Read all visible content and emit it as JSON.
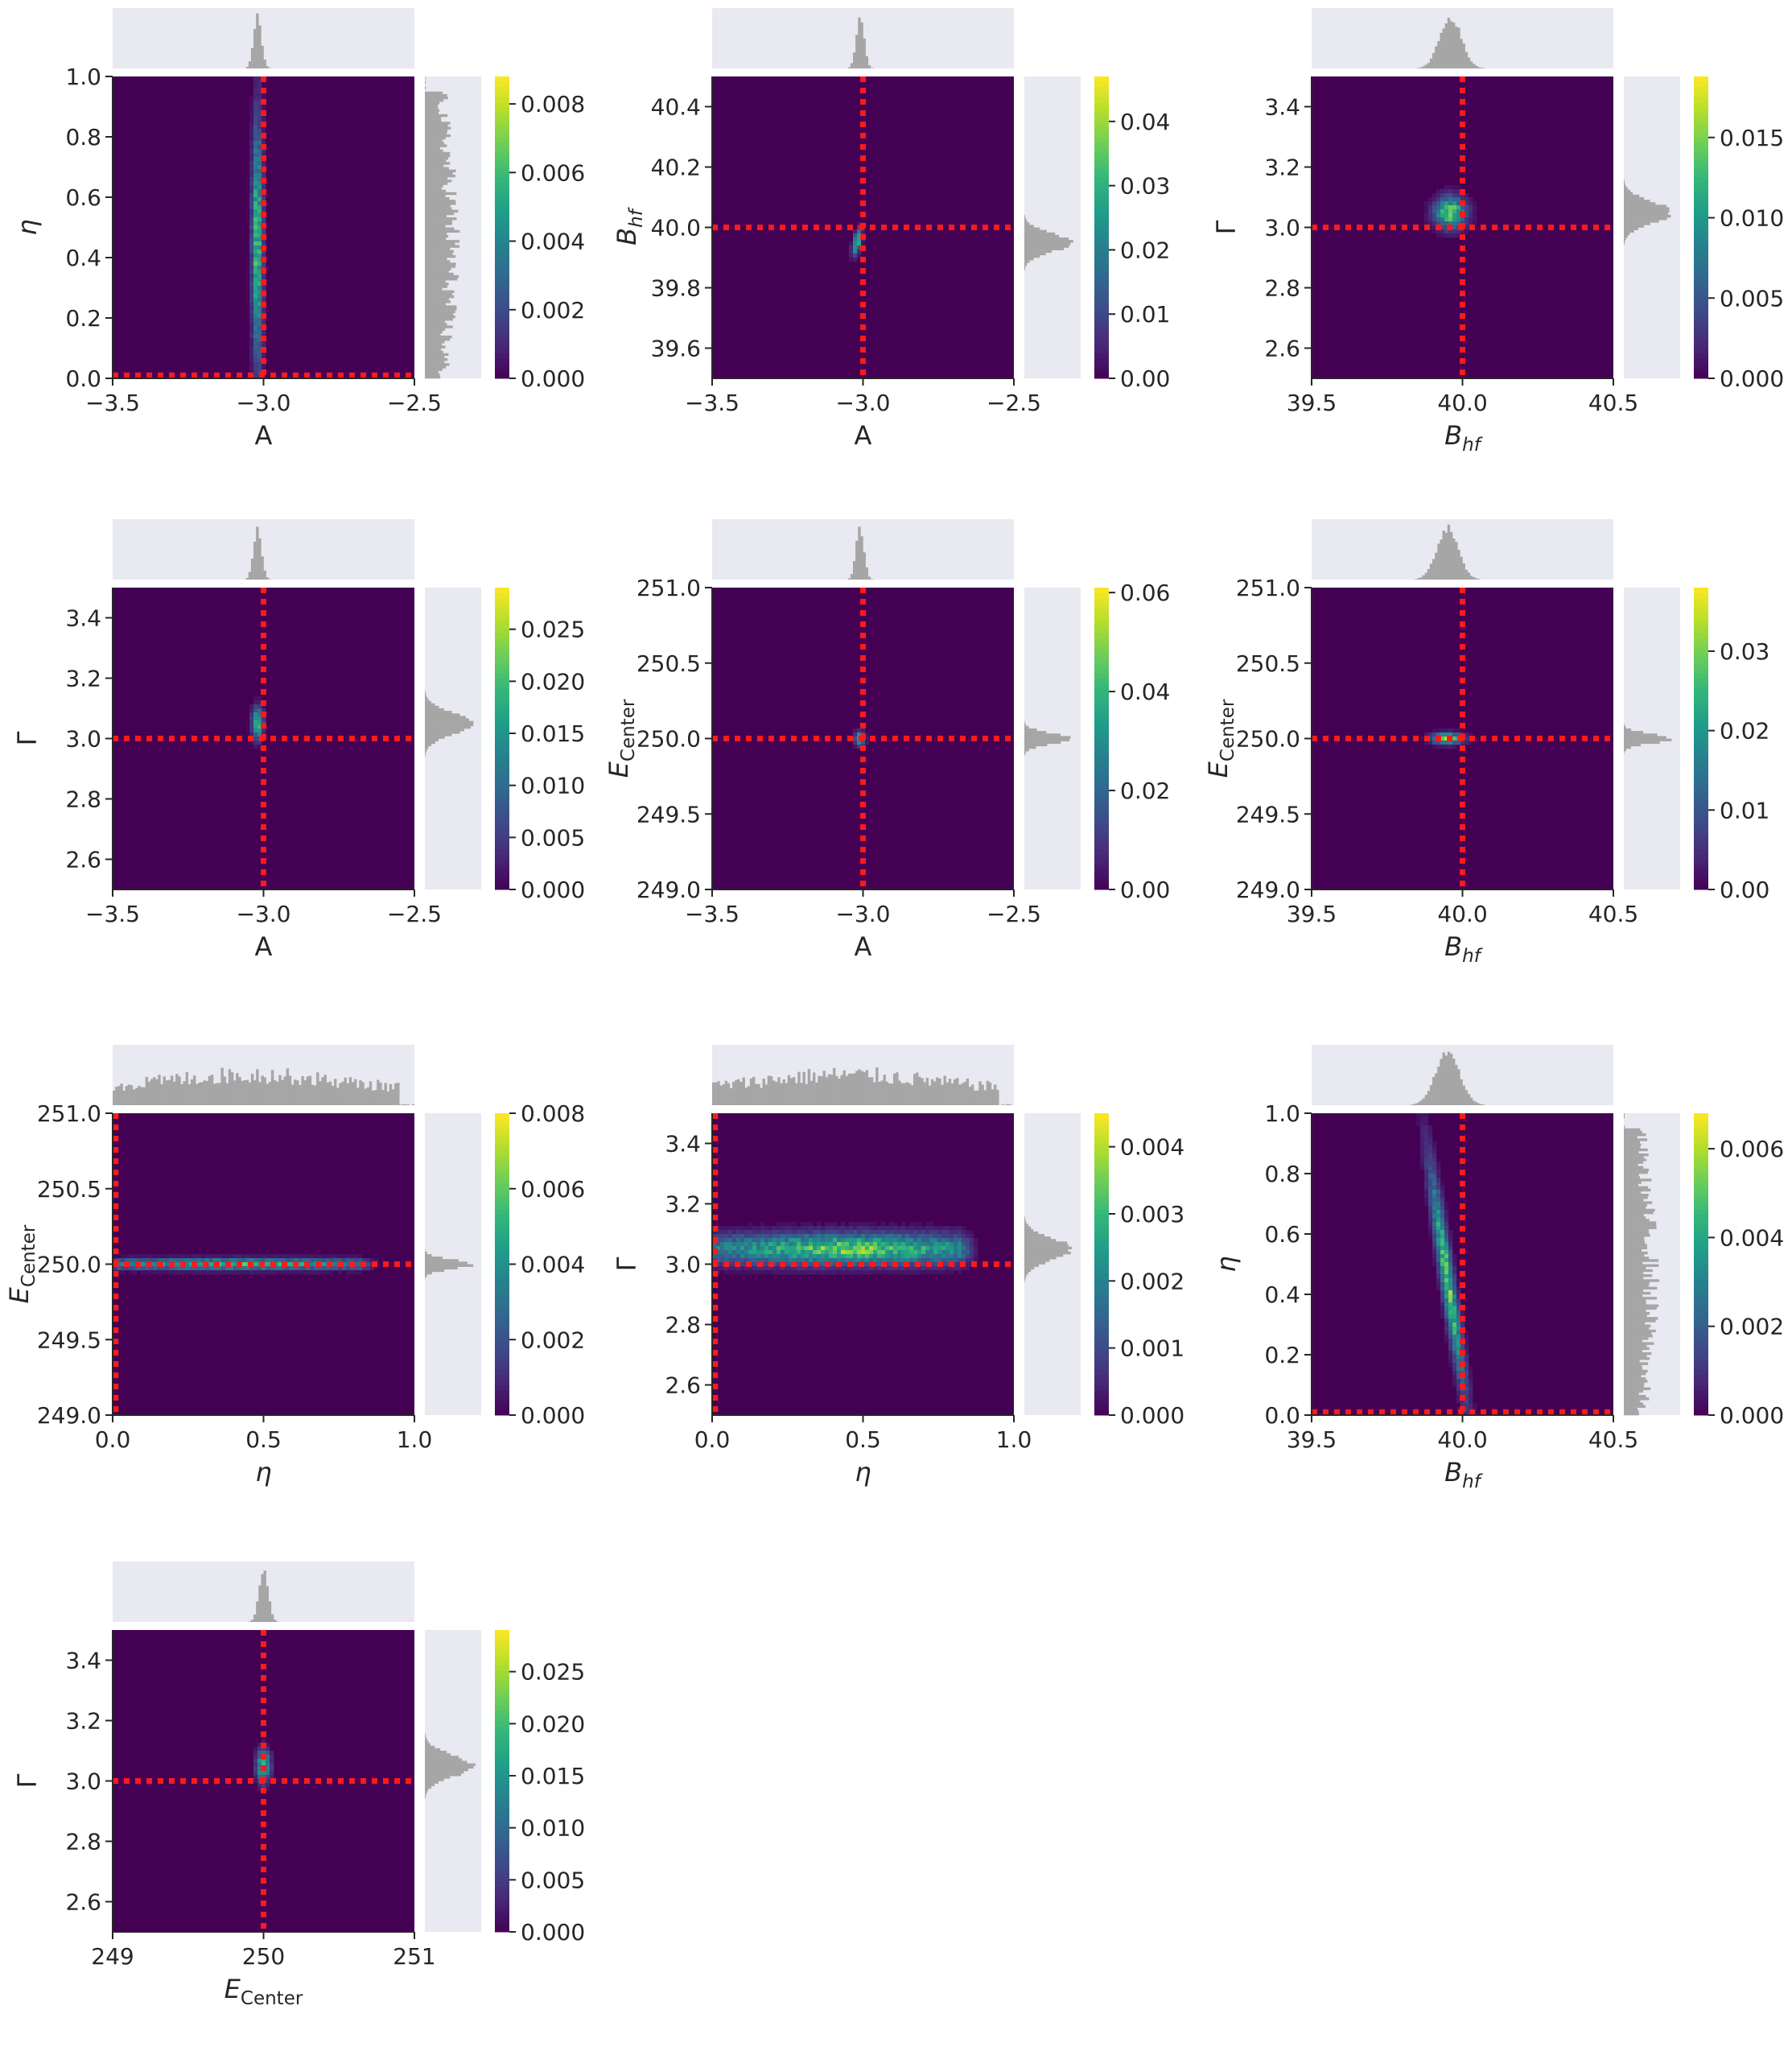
{
  "colors": {
    "heat_background": "#440154",
    "truth_line": "#ff1a1a",
    "hist_fill": "#a6a6a6",
    "hist_background": "#e9e9f1",
    "axis": "#262626",
    "colormap": [
      "#440154",
      "#482878",
      "#3e4a89",
      "#31688e",
      "#26828e",
      "#1f9e89",
      "#35b779",
      "#6ece58",
      "#b5de2b",
      "#fde725"
    ]
  },
  "chart_data": [
    {
      "type": "heatmap",
      "xlabel": "A",
      "ylabel": "η",
      "xlim": [
        -3.5,
        -2.5
      ],
      "ylim": [
        0.0,
        1.0
      ],
      "xticks": [
        "−3.5",
        "−3.0",
        "−2.5"
      ],
      "xtick_values": [
        -3.5,
        -3.0,
        -2.5
      ],
      "yticks": [
        "0.0",
        "0.2",
        "0.4",
        "0.6",
        "0.8",
        "1.0"
      ],
      "ytick_values": [
        0.0,
        0.2,
        0.4,
        0.6,
        0.8,
        1.0
      ],
      "colorbar_ticks": [
        "0.000",
        "0.002",
        "0.004",
        "0.006",
        "0.008"
      ],
      "colorbar_tick_values": [
        0.0,
        0.002,
        0.004,
        0.006,
        0.008
      ],
      "colorbar_max": 0.0088,
      "truth": {
        "x": -3.0,
        "y": 0.01
      },
      "density": {
        "cx": -3.02,
        "cy": 0.45,
        "sx": 0.012,
        "sy": 0.27,
        "rho": 0.0,
        "peak": 0.008
      },
      "x_marginal": {
        "mean": -3.02,
        "sd": 0.013,
        "kind": "peak"
      },
      "y_marginal": {
        "mean": 0.45,
        "sd": 0.27,
        "kind": "spread",
        "range": [
          0.0,
          0.95
        ]
      }
    },
    {
      "type": "heatmap",
      "xlabel": "A",
      "ylabel": "B_hf",
      "xlim": [
        -3.5,
        -2.5
      ],
      "ylim": [
        39.5,
        40.5
      ],
      "xticks": [
        "−3.5",
        "−3.0",
        "−2.5"
      ],
      "xtick_values": [
        -3.5,
        -3.0,
        -2.5
      ],
      "yticks": [
        "39.6",
        "39.8",
        "40.0",
        "40.2",
        "40.4"
      ],
      "ytick_values": [
        39.6,
        39.8,
        40.0,
        40.2,
        40.4
      ],
      "colorbar_ticks": [
        "0.00",
        "0.01",
        "0.02",
        "0.03",
        "0.04"
      ],
      "colorbar_tick_values": [
        0.0,
        0.01,
        0.02,
        0.03,
        0.04
      ],
      "colorbar_max": 0.047,
      "truth": {
        "x": -3.0,
        "y": 40.0
      },
      "density": {
        "cx": -3.02,
        "cy": 39.95,
        "sx": 0.01,
        "sy": 0.028,
        "rho": 0.5,
        "peak": 0.042
      },
      "x_marginal": {
        "mean": -3.01,
        "sd": 0.013,
        "kind": "peak"
      },
      "y_marginal": {
        "mean": 39.95,
        "sd": 0.03,
        "kind": "peak"
      }
    },
    {
      "type": "heatmap",
      "xlabel": "B_hf",
      "ylabel": "Γ",
      "xlim": [
        39.5,
        40.5
      ],
      "ylim": [
        2.5,
        3.5
      ],
      "xticks": [
        "39.5",
        "40.0",
        "40.5"
      ],
      "xtick_values": [
        39.5,
        40.0,
        40.5
      ],
      "yticks": [
        "2.6",
        "2.8",
        "3.0",
        "3.2",
        "3.4"
      ],
      "ytick_values": [
        2.6,
        2.8,
        3.0,
        3.2,
        3.4
      ],
      "colorbar_ticks": [
        "0.000",
        "0.005",
        "0.010",
        "0.015"
      ],
      "colorbar_tick_values": [
        0.0,
        0.005,
        0.01,
        0.015
      ],
      "colorbar_max": 0.0188,
      "truth": {
        "x": 40.0,
        "y": 3.0
      },
      "density": {
        "cx": 39.96,
        "cy": 3.05,
        "sx": 0.035,
        "sy": 0.035,
        "rho": 0.0,
        "peak": 0.018
      },
      "x_marginal": {
        "mean": 39.96,
        "sd": 0.035,
        "kind": "peak"
      },
      "y_marginal": {
        "mean": 3.05,
        "sd": 0.035,
        "kind": "peak"
      }
    },
    {
      "type": "heatmap",
      "xlabel": "A",
      "ylabel": "Γ",
      "xlim": [
        -3.5,
        -2.5
      ],
      "ylim": [
        2.5,
        3.5
      ],
      "xticks": [
        "−3.5",
        "−3.0",
        "−2.5"
      ],
      "xtick_values": [
        -3.5,
        -3.0,
        -2.5
      ],
      "yticks": [
        "2.6",
        "2.8",
        "3.0",
        "3.2",
        "3.4"
      ],
      "ytick_values": [
        2.6,
        2.8,
        3.0,
        3.2,
        3.4
      ],
      "colorbar_ticks": [
        "0.000",
        "0.005",
        "0.010",
        "0.015",
        "0.020",
        "0.025"
      ],
      "colorbar_tick_values": [
        0.0,
        0.005,
        0.01,
        0.015,
        0.02,
        0.025
      ],
      "colorbar_max": 0.029,
      "truth": {
        "x": -3.0,
        "y": 3.0
      },
      "density": {
        "cx": -3.02,
        "cy": 3.05,
        "sx": 0.012,
        "sy": 0.035,
        "rho": 0.0,
        "peak": 0.027
      },
      "x_marginal": {
        "mean": -3.02,
        "sd": 0.013,
        "kind": "peak"
      },
      "y_marginal": {
        "mean": 3.05,
        "sd": 0.035,
        "kind": "peak"
      }
    },
    {
      "type": "heatmap",
      "xlabel": "A",
      "ylabel": "E_Center",
      "xlim": [
        -3.5,
        -2.5
      ],
      "ylim": [
        249.0,
        251.0
      ],
      "xticks": [
        "−3.5",
        "−3.0",
        "−2.5"
      ],
      "xtick_values": [
        -3.5,
        -3.0,
        -2.5
      ],
      "yticks": [
        "249.0",
        "249.5",
        "250.0",
        "250.5",
        "251.0"
      ],
      "ytick_values": [
        249.0,
        249.5,
        250.0,
        250.5,
        251.0
      ],
      "colorbar_ticks": [
        "0.00",
        "0.02",
        "0.04",
        "0.06"
      ],
      "colorbar_tick_values": [
        0.0,
        0.02,
        0.04,
        0.06
      ],
      "colorbar_max": 0.061,
      "truth": {
        "x": -3.0,
        "y": 250.0
      },
      "density": {
        "cx": -3.01,
        "cy": 250.0,
        "sx": 0.011,
        "sy": 0.03,
        "rho": 0.0,
        "peak": 0.058
      },
      "x_marginal": {
        "mean": -3.01,
        "sd": 0.013,
        "kind": "peak"
      },
      "y_marginal": {
        "mean": 250.0,
        "sd": 0.035,
        "kind": "peak"
      }
    },
    {
      "type": "heatmap",
      "xlabel": "B_hf",
      "ylabel": "E_Center",
      "xlim": [
        39.5,
        40.5
      ],
      "ylim": [
        249.0,
        251.0
      ],
      "xticks": [
        "39.5",
        "40.0",
        "40.5"
      ],
      "xtick_values": [
        39.5,
        40.0,
        40.5
      ],
      "yticks": [
        "249.0",
        "249.5",
        "250.0",
        "250.5",
        "251.0"
      ],
      "ytick_values": [
        249.0,
        249.5,
        250.0,
        250.5,
        251.0
      ],
      "colorbar_ticks": [
        "0.00",
        "0.01",
        "0.02",
        "0.03"
      ],
      "colorbar_tick_values": [
        0.0,
        0.01,
        0.02,
        0.03
      ],
      "colorbar_max": 0.038,
      "truth": {
        "x": 40.0,
        "y": 250.0
      },
      "density": {
        "cx": 39.95,
        "cy": 250.0,
        "sx": 0.035,
        "sy": 0.025,
        "rho": 0.0,
        "peak": 0.036
      },
      "x_marginal": {
        "mean": 39.95,
        "sd": 0.035,
        "kind": "peak"
      },
      "y_marginal": {
        "mean": 250.0,
        "sd": 0.03,
        "kind": "peak"
      }
    },
    {
      "type": "heatmap",
      "xlabel": "η",
      "ylabel": "E_Center",
      "xlim": [
        0.0,
        1.0
      ],
      "ylim": [
        249.0,
        251.0
      ],
      "xticks": [
        "0.0",
        "0.5",
        "1.0"
      ],
      "xtick_values": [
        0.0,
        0.5,
        1.0
      ],
      "yticks": [
        "249.0",
        "249.5",
        "250.0",
        "250.5",
        "251.0"
      ],
      "ytick_values": [
        249.0,
        249.5,
        250.0,
        250.5,
        251.0
      ],
      "colorbar_ticks": [
        "0.000",
        "0.002",
        "0.004",
        "0.006",
        "0.008"
      ],
      "colorbar_tick_values": [
        0.0,
        0.002,
        0.004,
        0.006,
        0.008
      ],
      "colorbar_max": 0.008,
      "truth": {
        "x": 0.01,
        "y": 250.0
      },
      "density": {
        "cx": 0.42,
        "cy": 250.0,
        "sx": 0.22,
        "sy": 0.025,
        "rho": 0.0,
        "peak": 0.0065,
        "xrange": [
          0.02,
          0.82
        ]
      },
      "x_marginal": {
        "mean": 0.45,
        "sd": 0.25,
        "kind": "spread",
        "range": [
          0.0,
          0.95
        ]
      },
      "y_marginal": {
        "mean": 250.0,
        "sd": 0.03,
        "kind": "peak"
      }
    },
    {
      "type": "heatmap",
      "xlabel": "η",
      "ylabel": "Γ",
      "xlim": [
        0.0,
        1.0
      ],
      "ylim": [
        2.5,
        3.5
      ],
      "xticks": [
        "0.0",
        "0.5",
        "1.0"
      ],
      "xtick_values": [
        0.0,
        0.5,
        1.0
      ],
      "yticks": [
        "2.6",
        "2.8",
        "3.0",
        "3.2",
        "3.4"
      ],
      "ytick_values": [
        2.6,
        2.8,
        3.0,
        3.2,
        3.4
      ],
      "colorbar_ticks": [
        "0.000",
        "0.001",
        "0.002",
        "0.003",
        "0.004"
      ],
      "colorbar_tick_values": [
        0.0,
        0.001,
        0.002,
        0.003,
        0.004
      ],
      "colorbar_max": 0.0045,
      "truth": {
        "x": 0.01,
        "y": 3.0
      },
      "density": {
        "cx": 0.45,
        "cy": 3.05,
        "sx": 0.22,
        "sy": 0.035,
        "rho": 0.0,
        "peak": 0.0042,
        "xrange": [
          0.02,
          0.82
        ]
      },
      "x_marginal": {
        "mean": 0.45,
        "sd": 0.25,
        "kind": "spread",
        "range": [
          0.0,
          0.95
        ]
      },
      "y_marginal": {
        "mean": 3.05,
        "sd": 0.035,
        "kind": "peak"
      }
    },
    {
      "type": "heatmap",
      "xlabel": "B_hf",
      "ylabel": "η",
      "xlim": [
        39.5,
        40.5
      ],
      "ylim": [
        0.0,
        1.0
      ],
      "xticks": [
        "39.5",
        "40.0",
        "40.5"
      ],
      "xtick_values": [
        39.5,
        40.0,
        40.5
      ],
      "yticks": [
        "0.0",
        "0.2",
        "0.4",
        "0.6",
        "0.8",
        "1.0"
      ],
      "ytick_values": [
        0.0,
        0.2,
        0.4,
        0.6,
        0.8,
        1.0
      ],
      "colorbar_ticks": [
        "0.000",
        "0.002",
        "0.004",
        "0.006"
      ],
      "colorbar_tick_values": [
        0.0,
        0.002,
        0.004,
        0.006
      ],
      "colorbar_max": 0.0068,
      "truth": {
        "x": 40.0,
        "y": 0.01
      },
      "density": {
        "cx": 39.95,
        "cy": 0.45,
        "sx": 0.015,
        "sy": 0.25,
        "rho": 0.0,
        "peak": 0.0062,
        "slope": -0.15
      },
      "x_marginal": {
        "mean": 39.95,
        "sd": 0.04,
        "kind": "peak"
      },
      "y_marginal": {
        "mean": 0.45,
        "sd": 0.27,
        "kind": "spread",
        "range": [
          0.0,
          0.95
        ]
      }
    },
    {
      "type": "heatmap",
      "xlabel": "E_Center",
      "ylabel": "Γ",
      "xlim": [
        249.0,
        251.0
      ],
      "ylim": [
        2.5,
        3.5
      ],
      "xticks": [
        "249",
        "250",
        "251"
      ],
      "xtick_values": [
        249,
        250,
        251
      ],
      "yticks": [
        "2.6",
        "2.8",
        "3.0",
        "3.2",
        "3.4"
      ],
      "ytick_values": [
        2.6,
        2.8,
        3.0,
        3.2,
        3.4
      ],
      "colorbar_ticks": [
        "0.000",
        "0.005",
        "0.010",
        "0.015",
        "0.020",
        "0.025"
      ],
      "colorbar_tick_values": [
        0.0,
        0.005,
        0.01,
        0.015,
        0.02,
        0.025
      ],
      "colorbar_max": 0.029,
      "truth": {
        "x": 250.0,
        "y": 3.0
      },
      "density": {
        "cx": 250.0,
        "cy": 3.05,
        "sx": 0.03,
        "sy": 0.035,
        "rho": 0.0,
        "peak": 0.027
      },
      "x_marginal": {
        "mean": 250.0,
        "sd": 0.03,
        "kind": "peak"
      },
      "y_marginal": {
        "mean": 3.05,
        "sd": 0.035,
        "kind": "peak"
      }
    }
  ]
}
